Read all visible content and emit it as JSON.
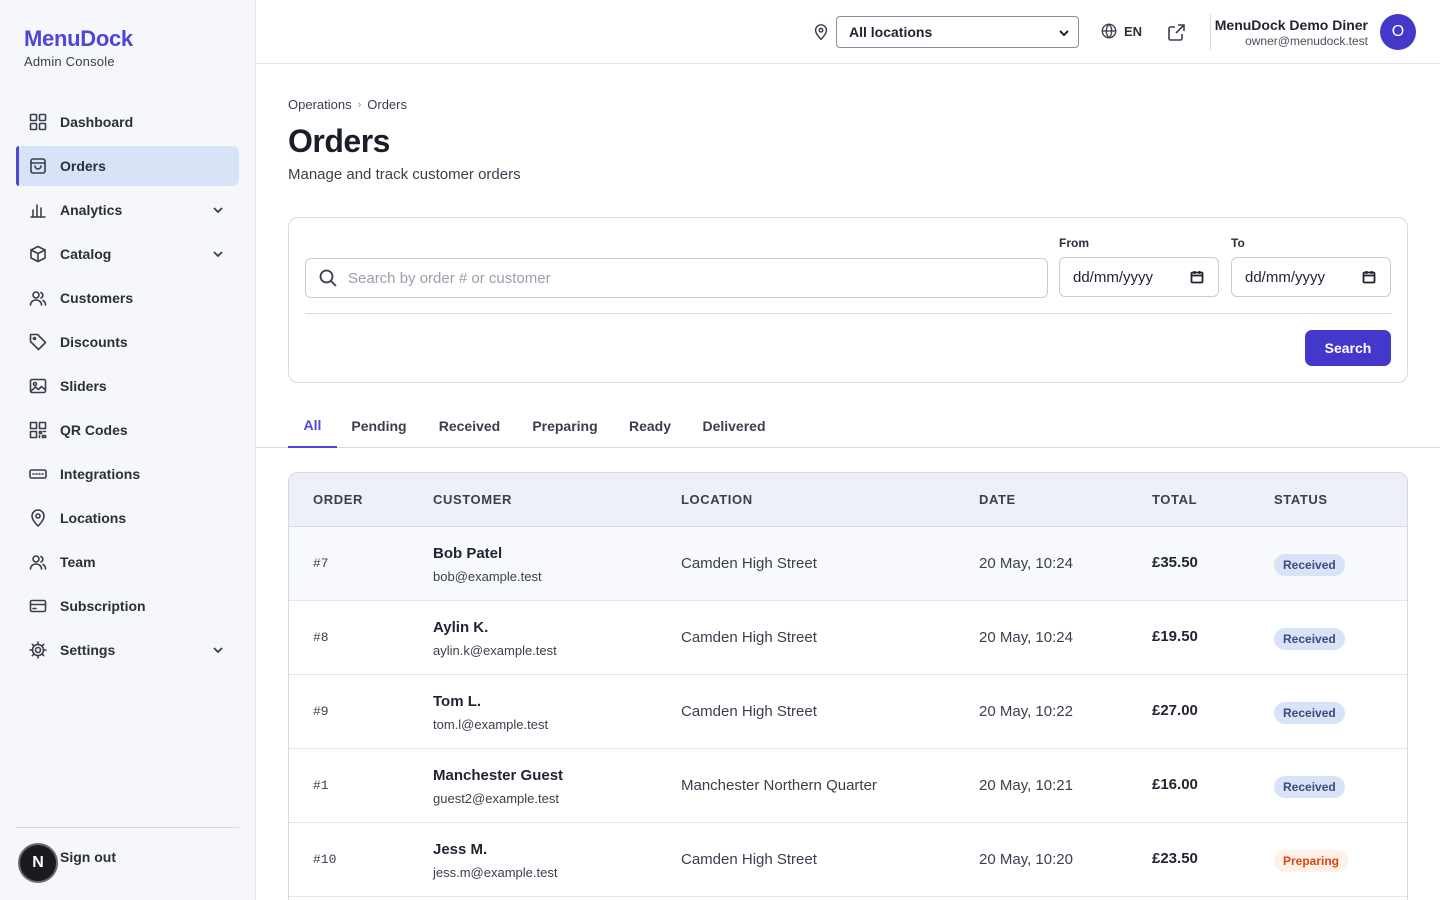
{
  "brand": {
    "name": "MenuDock",
    "subtitle": "Admin Console"
  },
  "sidebar": {
    "items": [
      {
        "label": "Dashboard",
        "icon": "grid-icon",
        "expandable": false
      },
      {
        "label": "Orders",
        "icon": "shopping-bag-icon",
        "expandable": false,
        "active": true
      },
      {
        "label": "Analytics",
        "icon": "bar-chart-icon",
        "expandable": true
      },
      {
        "label": "Catalog",
        "icon": "box-icon",
        "expandable": true
      },
      {
        "label": "Customers",
        "icon": "users-icon",
        "expandable": false
      },
      {
        "label": "Discounts",
        "icon": "tag-icon",
        "expandable": false
      },
      {
        "label": "Sliders",
        "icon": "image-icon",
        "expandable": false
      },
      {
        "label": "QR Codes",
        "icon": "qr-code-icon",
        "expandable": false
      },
      {
        "label": "Integrations",
        "icon": "plug-icon",
        "expandable": false
      },
      {
        "label": "Locations",
        "icon": "map-pin-icon",
        "expandable": false
      },
      {
        "label": "Team",
        "icon": "team-icon",
        "expandable": false
      },
      {
        "label": "Subscription",
        "icon": "credit-card-icon",
        "expandable": false
      },
      {
        "label": "Settings",
        "icon": "gear-icon",
        "expandable": true
      }
    ],
    "signout": {
      "avatar_letter": "N",
      "label": "Sign out"
    }
  },
  "topbar": {
    "location_select": "All locations",
    "language": "EN",
    "user": {
      "name": "MenuDock Demo Diner",
      "email": "owner@menudock.test",
      "avatar_letter": "O"
    }
  },
  "breadcrumb": {
    "parent": "Operations",
    "current": "Orders"
  },
  "page": {
    "title": "Orders",
    "subtitle": "Manage and track customer orders"
  },
  "filters": {
    "search_placeholder": "Search by order # or customer",
    "from_label": "From",
    "to_label": "To",
    "date_placeholder": "dd/mm/yyyy",
    "search_button": "Search"
  },
  "tabs": [
    "All",
    "Pending",
    "Received",
    "Preparing",
    "Ready",
    "Delivered"
  ],
  "table": {
    "headers": {
      "order": "ORDER",
      "customer": "CUSTOMER",
      "location": "LOCATION",
      "date": "DATE",
      "total": "TOTAL",
      "status": "STATUS"
    },
    "rows": [
      {
        "order": "#7",
        "name": "Bob Patel",
        "email": "bob@example.test",
        "location": "Camden High Street",
        "date": "20 May, 10:24",
        "total": "£35.50",
        "status": "Received"
      },
      {
        "order": "#8",
        "name": "Aylin K.",
        "email": "aylin.k@example.test",
        "location": "Camden High Street",
        "date": "20 May, 10:24",
        "total": "£19.50",
        "status": "Received"
      },
      {
        "order": "#9",
        "name": "Tom L.",
        "email": "tom.l@example.test",
        "location": "Camden High Street",
        "date": "20 May, 10:22",
        "total": "£27.00",
        "status": "Received"
      },
      {
        "order": "#1",
        "name": "Manchester Guest",
        "email": "guest2@example.test",
        "location": "Manchester Northern Quarter",
        "date": "20 May, 10:21",
        "total": "£16.00",
        "status": "Received"
      },
      {
        "order": "#10",
        "name": "Jess M.",
        "email": "jess.m@example.test",
        "location": "Camden High Street",
        "date": "20 May, 10:20",
        "total": "£23.50",
        "status": "Preparing"
      }
    ]
  },
  "colors": {
    "accent": "#4338ca",
    "brand": "#4f46d6",
    "active_nav": "#d9e3f7",
    "status_preparing": "#d9480f"
  }
}
